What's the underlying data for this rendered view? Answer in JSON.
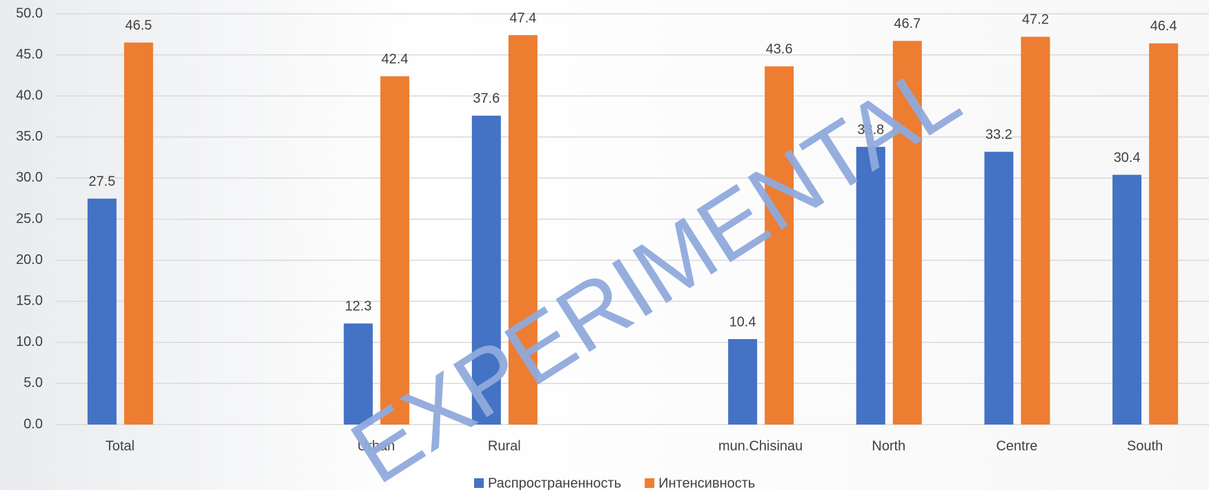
{
  "chart_data": {
    "type": "bar",
    "categories": [
      "Total",
      null,
      "Urban",
      "Rural",
      null,
      "mun.Chisinau",
      "North",
      "Centre",
      "South"
    ],
    "series": [
      {
        "name": "Распространенность",
        "color": "#4472c4",
        "values": [
          27.5,
          null,
          12.3,
          37.6,
          null,
          10.4,
          33.8,
          33.2,
          30.4
        ]
      },
      {
        "name": "Интенсивность",
        "color": "#ed7d31",
        "values": [
          46.5,
          null,
          42.4,
          47.4,
          null,
          43.6,
          46.7,
          47.2,
          46.4
        ]
      }
    ],
    "ylim": [
      0,
      50
    ],
    "yticks": [
      {
        "value": 0,
        "label": "0.0"
      },
      {
        "value": 5,
        "label": "5.0"
      },
      {
        "value": 10,
        "label": "10.0"
      },
      {
        "value": 15,
        "label": "15.0"
      },
      {
        "value": 20,
        "label": "20.0"
      },
      {
        "value": 25,
        "label": "25.0"
      },
      {
        "value": 30,
        "label": "30.0"
      },
      {
        "value": 35,
        "label": "35.0"
      },
      {
        "value": 40,
        "label": "40.0"
      },
      {
        "value": 45,
        "label": "45.0"
      },
      {
        "value": 50,
        "label": "50.0"
      }
    ],
    "grid": true,
    "legend": "bottom",
    "watermark": "EXPERIMENTAL"
  }
}
